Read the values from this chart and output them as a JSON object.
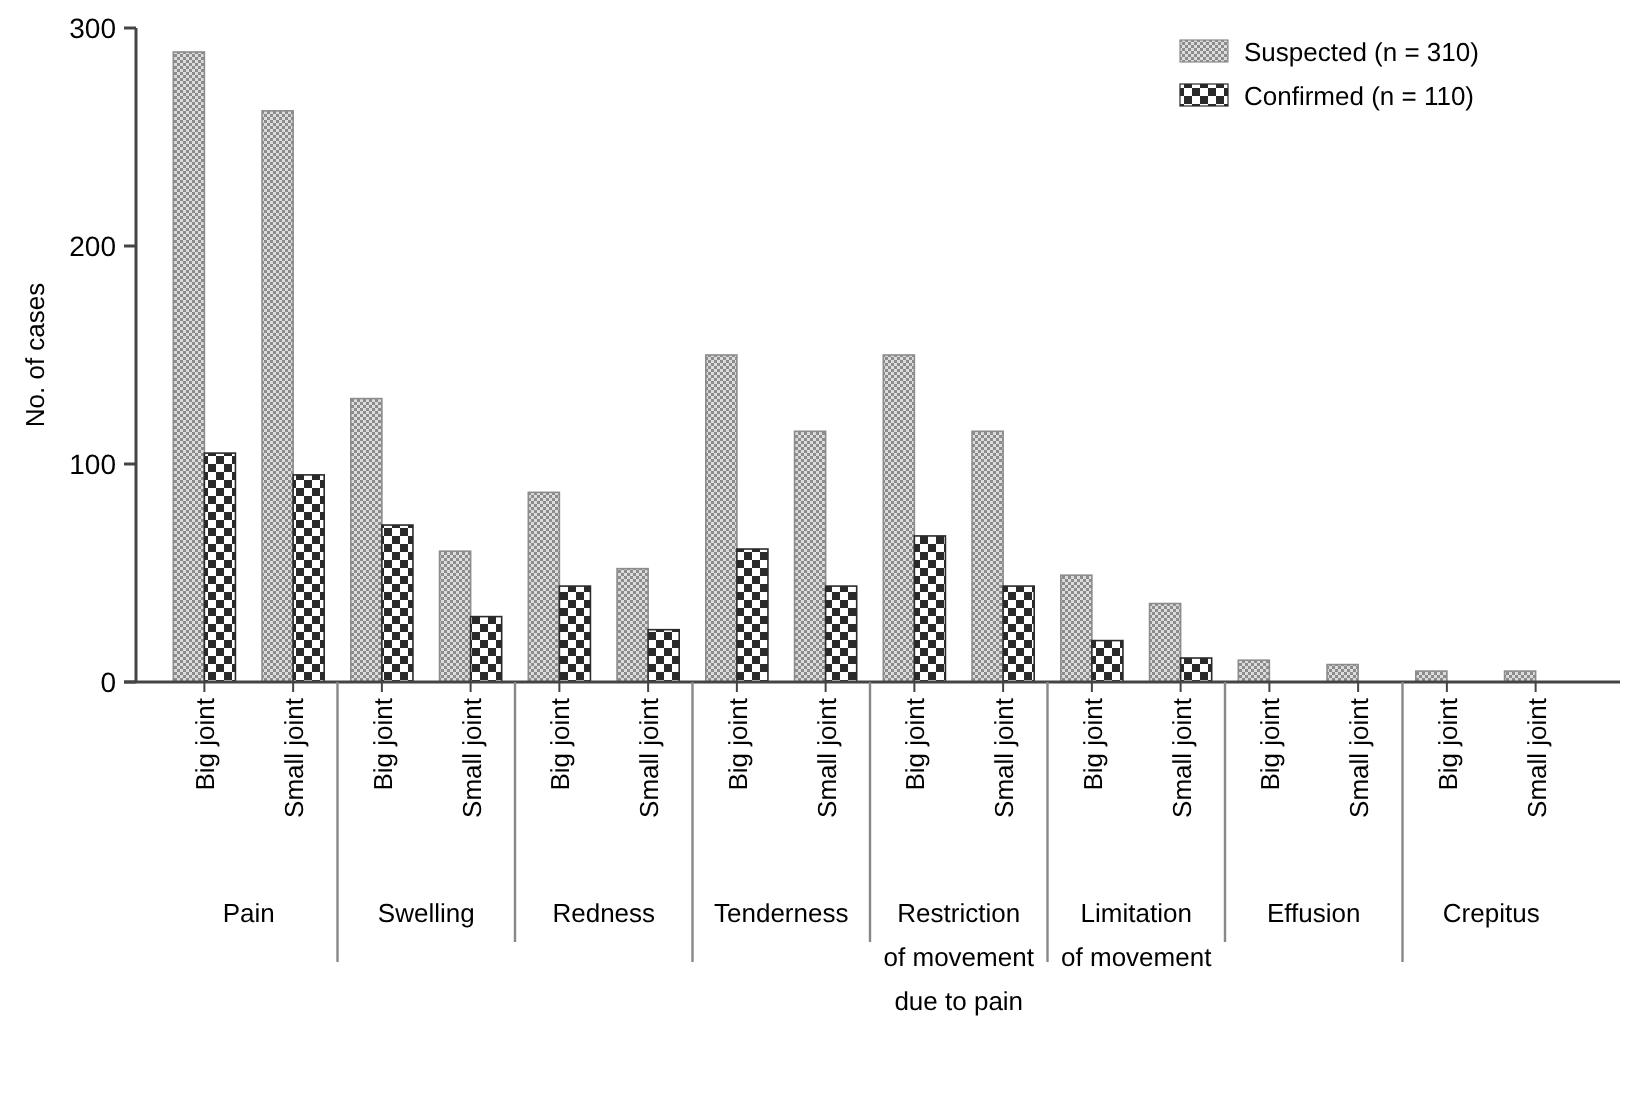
{
  "chart_data": {
    "type": "bar",
    "ylabel": "No. of cases",
    "categories": [
      "Big joint",
      "Small joint",
      "Big joint",
      "Small joint",
      "Big joint",
      "Small joint",
      "Big joint",
      "Small joint",
      "Big joint",
      "Small joint",
      "Big joint",
      "Small joint",
      "Big joint",
      "Small joint",
      "Big joint",
      "Small joint"
    ],
    "series": [
      {
        "name": "Suspected (n = 310)",
        "color": "#8c8c8c",
        "values": [
          289,
          262,
          130,
          60,
          87,
          52,
          150,
          115,
          150,
          115,
          49,
          36,
          10,
          8,
          5,
          5
        ]
      },
      {
        "name": "Confirmed (n = 110)",
        "color": "#2a2a2a",
        "values": [
          105,
          95,
          72,
          30,
          44,
          24,
          61,
          44,
          67,
          44,
          19,
          11,
          0,
          0,
          0,
          0
        ]
      }
    ],
    "annotations": [
      "Pain",
      "Swelling",
      "Redness",
      "Tenderness",
      "Restriction of movement due to pain",
      "Limitation of movement",
      "Effusion",
      "Crepitus"
    ],
    "ylim": [
      0,
      300
    ],
    "yticks": [
      0,
      100,
      200,
      300
    ],
    "grid": false,
    "legend": "top right"
  }
}
